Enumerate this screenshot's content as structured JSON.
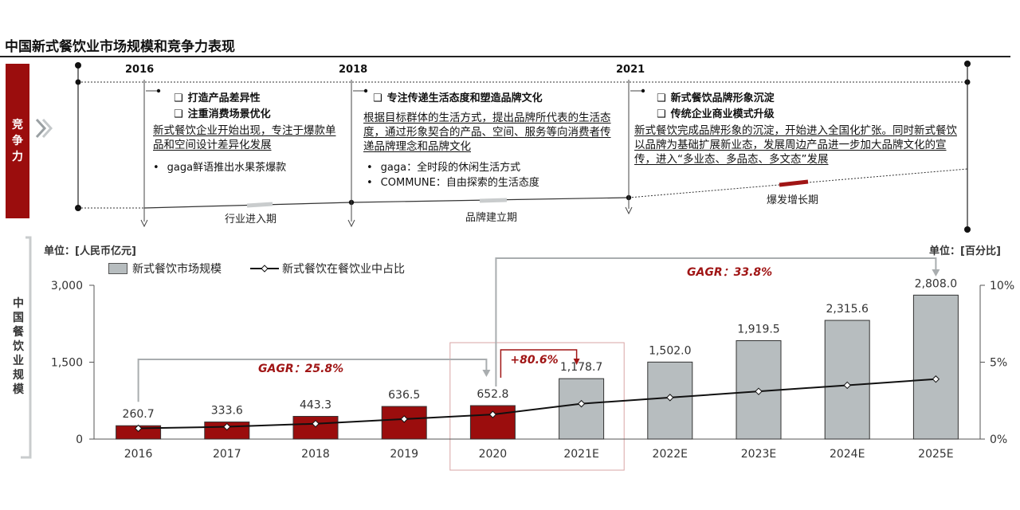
{
  "title": "中国新式餐饮业市场规模和竞争力表现",
  "sidebar_label": "竞争力",
  "timeline": {
    "years": [
      "2016",
      "2018",
      "2021"
    ],
    "stages": [
      "行业进入期",
      "品牌建立期",
      "爆发增长期"
    ],
    "phase1": {
      "points": [
        "打造产品差异性",
        "注重消费场景优化"
      ],
      "desc": "新式餐饮企业开始出现，专注于爆款单品和空间设计差异化发展",
      "bullets": [
        "gaga鲜语推出水果茶爆款"
      ]
    },
    "phase2": {
      "points": [
        "专注传递生活态度和塑造品牌文化"
      ],
      "desc": "根据目标群体的生活方式，提出品牌所代表的生活态度，通过形象契合的产品、空间、服务等向消费者传递品牌理念和品牌文化",
      "bullets": [
        "gaga：全时段的休闲生活方式",
        "COMMUNE：自由探索的生活态度"
      ]
    },
    "phase3": {
      "points": [
        "新式餐饮品牌形象沉淀",
        "传统企业商业模式升级"
      ],
      "desc": "新式餐饮完成品牌形象的沉淀，开始进入全国化扩张。同时新式餐饮以品牌为基础扩展新业态，发展周边产品进一步加大品牌文化的宣传，进入“多业态、多品态、多文态”发展"
    }
  },
  "chart_data": {
    "type": "bar",
    "categories": [
      "2016",
      "2017",
      "2018",
      "2019",
      "2020",
      "2021E",
      "2022E",
      "2023E",
      "2024E",
      "2025E"
    ],
    "series": [
      {
        "name": "新式餐饮市场规模",
        "type": "bar",
        "axis": "left",
        "values": [
          260.7,
          333.6,
          443.3,
          636.5,
          652.8,
          1178.7,
          1502.0,
          1919.5,
          2315.6,
          2808.0
        ],
        "labels": [
          "260.7",
          "333.6",
          "443.3",
          "636.5",
          "652.8",
          "1,178.7",
          "1,502.0",
          "1,919.5",
          "2,315.6",
          "2,808.0"
        ]
      },
      {
        "name": "新式餐饮在餐饮业中占比",
        "type": "line",
        "axis": "right",
        "values": [
          0.7,
          0.8,
          1.0,
          1.3,
          1.6,
          2.3,
          2.7,
          3.1,
          3.5,
          3.9
        ]
      }
    ],
    "left_unit": "单位：[人民币亿元]",
    "right_unit": "单位：[百分比]",
    "ylabel": "中国餐饮业规模",
    "ylim": [
      0,
      3000
    ],
    "yticks": [
      "3,000",
      "1,500",
      "0"
    ],
    "y2lim": [
      0,
      10
    ],
    "y2ticks": [
      "10%",
      "5%",
      "0%"
    ],
    "bar_colors": {
      "actual": "#9b0d0d",
      "forecast": "#b7bdbf"
    },
    "annotations": {
      "cagr1": "GAGR：25.8%",
      "cagr2": "GAGR：33.8%",
      "growth": "+80.6%"
    },
    "legend_position": "top-left"
  }
}
